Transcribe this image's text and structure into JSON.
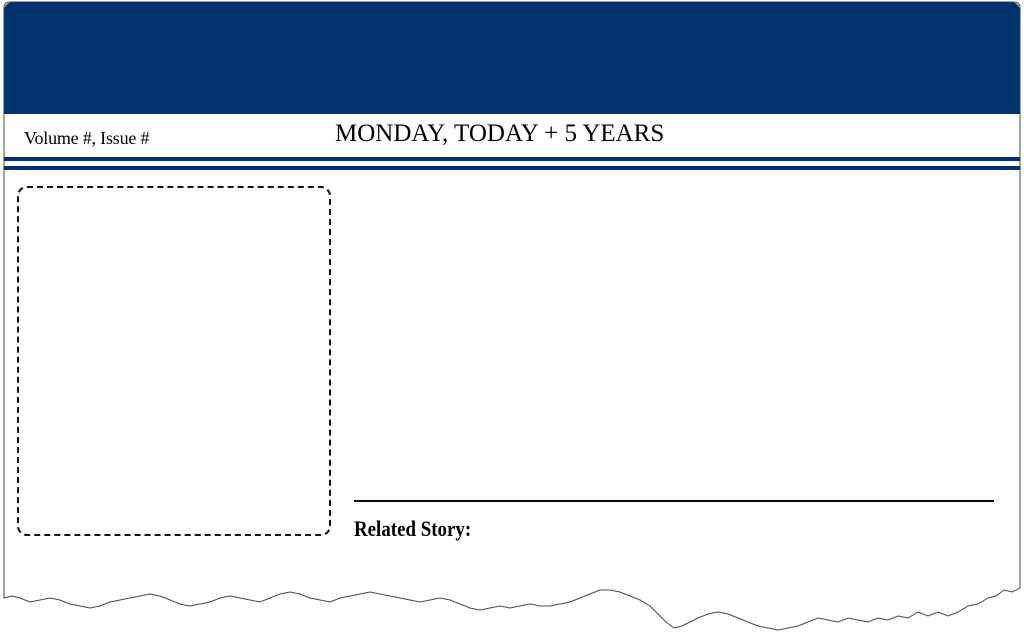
{
  "masthead": {
    "banner_color": "#00336e",
    "volume_issue": "Volume #, Issue #",
    "date_line": "MONDAY, TODAY + 5 YEARS"
  },
  "article": {
    "related_story_label": "Related Story:"
  },
  "colors": {
    "rule_navy": "#00336e",
    "text": "#000000",
    "paper": "#ffffff"
  }
}
